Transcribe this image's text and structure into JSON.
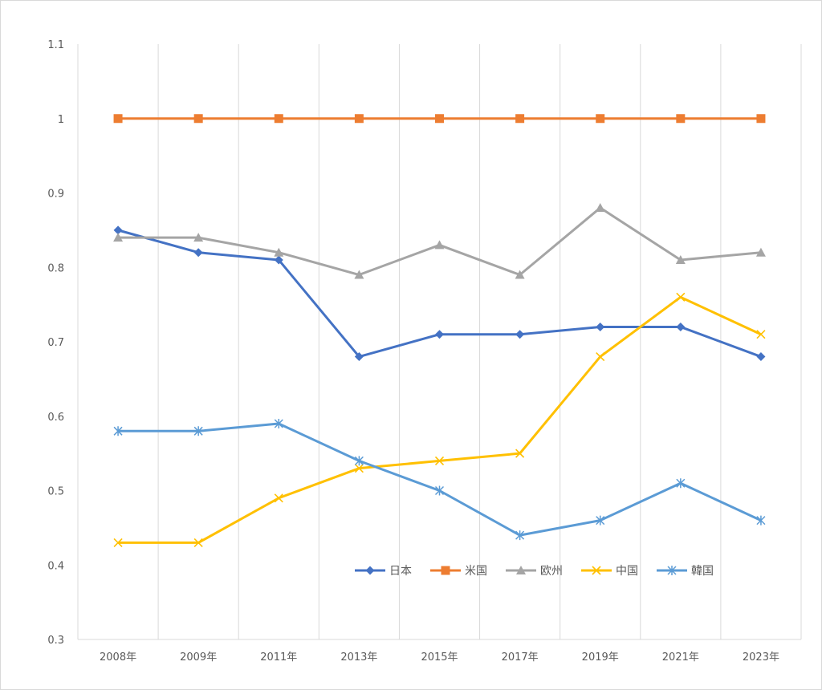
{
  "chart_data": {
    "type": "line",
    "title": "",
    "xlabel": "",
    "ylabel": "",
    "categories": [
      "2008年",
      "2009年",
      "2011年",
      "2013年",
      "2015年",
      "2017年",
      "2019年",
      "2021年",
      "2023年"
    ],
    "ylim": [
      0.3,
      1.1
    ],
    "yticks": [
      "1.1",
      "1",
      "0.9",
      "0.8",
      "0.7",
      "0.6",
      "0.5",
      "0.4",
      "0.3"
    ],
    "grid": "vertical",
    "legend": "bottom-right inside plot",
    "series": [
      {
        "name": "日本",
        "color": "#4472C4",
        "marker": "diamond",
        "values": [
          0.85,
          0.82,
          0.81,
          0.68,
          0.71,
          0.71,
          0.72,
          0.72,
          0.68
        ]
      },
      {
        "name": "米国",
        "color": "#ED7D31",
        "marker": "square",
        "values": [
          1.0,
          1.0,
          1.0,
          1.0,
          1.0,
          1.0,
          1.0,
          1.0,
          1.0
        ]
      },
      {
        "name": "欧州",
        "color": "#A5A5A5",
        "marker": "triangle",
        "values": [
          0.84,
          0.84,
          0.82,
          0.79,
          0.83,
          0.79,
          0.88,
          0.81,
          0.82
        ]
      },
      {
        "name": "中国",
        "color": "#FFC000",
        "marker": "x",
        "values": [
          0.43,
          0.43,
          0.49,
          0.53,
          0.54,
          0.55,
          0.68,
          0.76,
          0.71
        ]
      },
      {
        "name": "韓国",
        "color": "#5B9BD5",
        "marker": "star",
        "values": [
          0.58,
          0.58,
          0.59,
          0.54,
          0.5,
          0.44,
          0.46,
          0.51,
          0.46
        ]
      }
    ]
  }
}
